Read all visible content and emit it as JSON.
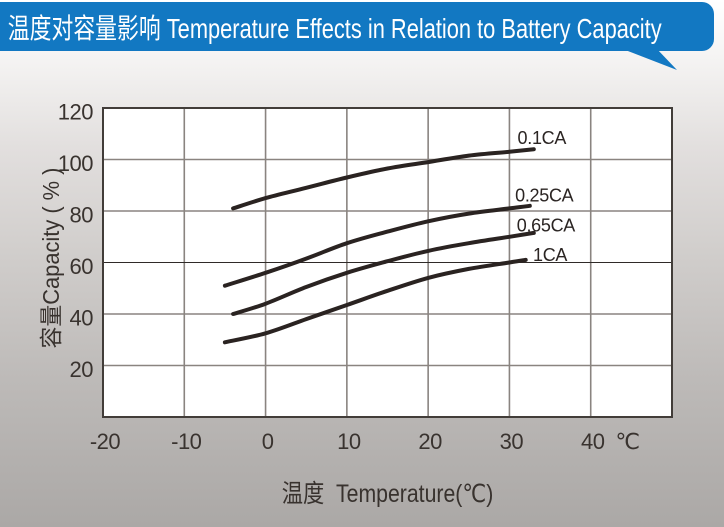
{
  "title": {
    "text": "温度对容量影响 Temperature Effects in Relation to Battery Capacity",
    "bg_color": "#1278c2",
    "text_color": "#ffffff"
  },
  "chart_data": {
    "type": "line",
    "title": "温度对容量影响 Temperature Effects in Relation to Battery Capacity",
    "xlabel": "温度  Temperature(℃)",
    "ylabel": "容量Capacity ( % )",
    "x_unit": "℃",
    "xlim": [
      -20,
      50
    ],
    "ylim": [
      0,
      120
    ],
    "x_ticks": [
      -20,
      -10,
      0,
      10,
      20,
      30,
      40
    ],
    "y_ticks": [
      20,
      40,
      60,
      80,
      100,
      120
    ],
    "grid": true,
    "legend_position": "inline-labels-right",
    "line_color": "#2a2321",
    "grid_color": "#8a8480",
    "emph_grid_value": 60,
    "emph_grid_color": "#2f2a28",
    "border_color": "#423d39",
    "tick_color": "#39332f",
    "plot_bg": "#ffffff",
    "series": [
      {
        "name": "0.1CA",
        "label_at": [
          31.0,
          106
        ],
        "points": [
          [
            -4,
            81
          ],
          [
            0,
            85
          ],
          [
            5,
            89
          ],
          [
            10,
            93
          ],
          [
            15,
            96.5
          ],
          [
            20,
            99
          ],
          [
            25,
            101.5
          ],
          [
            30,
            103
          ],
          [
            33,
            104
          ]
        ]
      },
      {
        "name": "0.25CA",
        "label_at": [
          30.7,
          83.7
        ],
        "points": [
          [
            -5,
            51
          ],
          [
            0,
            56
          ],
          [
            5,
            61.5
          ],
          [
            10,
            67.5
          ],
          [
            15,
            72
          ],
          [
            20,
            76
          ],
          [
            25,
            79
          ],
          [
            30,
            81
          ],
          [
            32.5,
            82
          ]
        ]
      },
      {
        "name": "0.65CA",
        "label_at": [
          30.9,
          72
        ],
        "points": [
          [
            -4,
            40
          ],
          [
            0,
            44
          ],
          [
            5,
            50.5
          ],
          [
            10,
            56
          ],
          [
            15,
            60.5
          ],
          [
            20,
            64.5
          ],
          [
            25,
            67.5
          ],
          [
            30,
            70
          ],
          [
            33,
            71.5
          ]
        ]
      },
      {
        "name": "1CA",
        "label_at": [
          32.9,
          60.6
        ],
        "points": [
          [
            -5,
            29
          ],
          [
            0,
            32.5
          ],
          [
            5,
            38
          ],
          [
            10,
            43.5
          ],
          [
            15,
            49
          ],
          [
            20,
            54
          ],
          [
            25,
            57.5
          ],
          [
            30,
            60
          ],
          [
            32,
            61
          ]
        ]
      }
    ]
  }
}
